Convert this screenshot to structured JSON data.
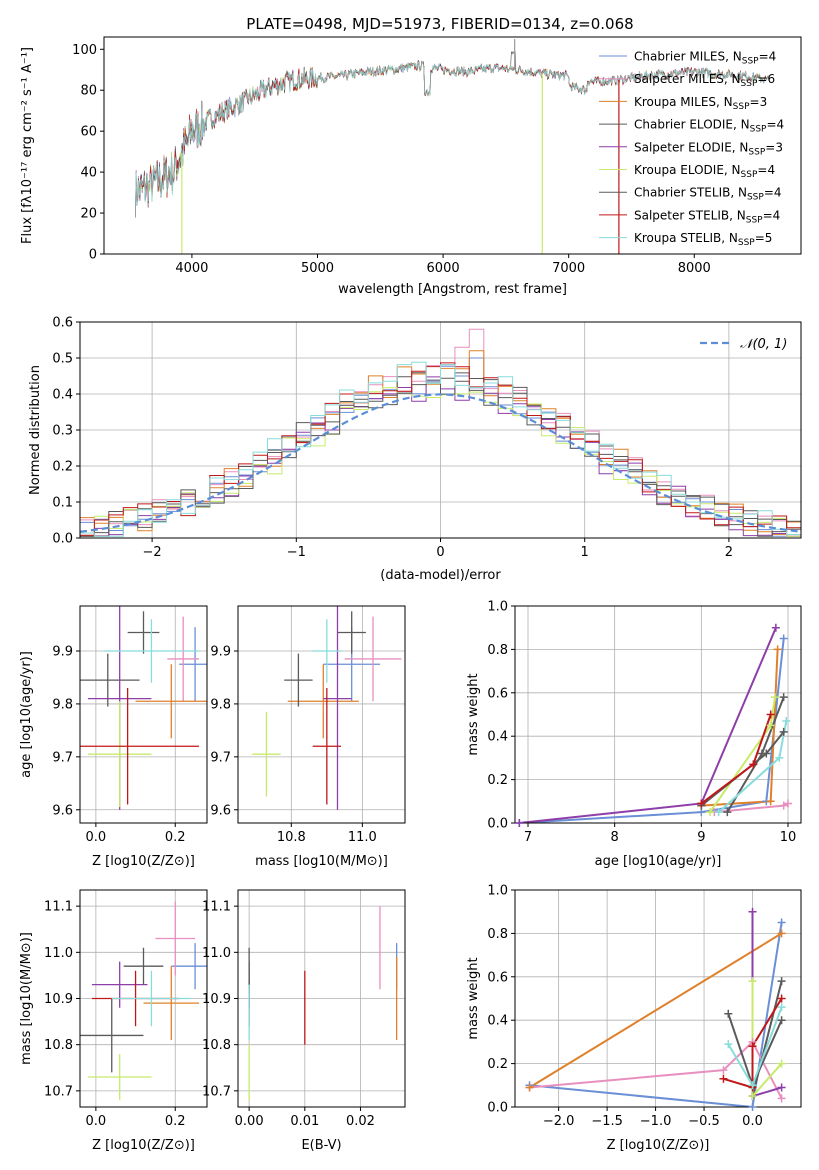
{
  "figure": {
    "title": "PLATE=0498, MJD=51973, FIBERID=0134, z=0.068"
  },
  "palette": {
    "Chabrier MILES": "#6a8fd6",
    "Salpeter MILES": "#e88fbf",
    "Kroupa MILES": "#e0802a",
    "Chabrier ELODIE": "#5a5a5a",
    "Salpeter ELODIE": "#8e3ea8",
    "Kroupa ELODIE": "#c8ea6a",
    "Chabrier STELIB": "#5a5a5a",
    "Salpeter STELIB": "#c01818",
    "Kroupa STELIB": "#88dcdc",
    "normal_curve": "#5b8ed6"
  },
  "chart_data": [
    {
      "id": "spectrum",
      "type": "line",
      "title": "PLATE=0498, MJD=51973, FIBERID=0134, z=0.068",
      "xlabel": "wavelength [Angstrom, rest frame]",
      "ylabel": "Flux [fλ10⁻¹⁷ erg cm⁻² s⁻¹ A⁻¹]",
      "xlim": [
        3300,
        8850
      ],
      "ylim": [
        0,
        106
      ],
      "xticks": [
        4000,
        5000,
        6000,
        7000,
        8000
      ],
      "yticks": [
        0,
        20,
        40,
        60,
        80,
        100
      ],
      "grid": false,
      "legend_position": "top-right",
      "legend": [
        {
          "label": "Chabrier MILES, N",
          "sub": "SSP",
          "tail": "=4"
        },
        {
          "label": "Salpeter MILES, N",
          "sub": "SSP",
          "tail": "=6"
        },
        {
          "label": "Kroupa MILES, N",
          "sub": "SSP",
          "tail": "=3"
        },
        {
          "label": "Chabrier ELODIE, N",
          "sub": "SSP",
          "tail": "=4"
        },
        {
          "label": "Salpeter ELODIE, N",
          "sub": "SSP",
          "tail": "=3"
        },
        {
          "label": "Kroupa ELODIE, N",
          "sub": "SSP",
          "tail": "=4"
        },
        {
          "label": "Chabrier STELIB, N",
          "sub": "SSP",
          "tail": "=4"
        },
        {
          "label": "Salpeter STELIB, N",
          "sub": "SSP",
          "tail": "=4"
        },
        {
          "label": "Kroupa STELIB, N",
          "sub": "SSP",
          "tail": "=5"
        }
      ],
      "continuum": {
        "x": [
          3550,
          3700,
          3850,
          4000,
          4200,
          4400,
          4600,
          4800,
          5000,
          5200,
          5400,
          5600,
          5800,
          6000,
          6200,
          6400,
          6600,
          6800,
          7000,
          7200,
          7400,
          7600,
          7800,
          8000,
          8200,
          8400,
          8600
        ],
        "y": [
          30,
          35,
          40,
          60,
          68,
          74,
          81,
          85,
          86,
          87,
          89,
          90,
          92,
          90,
          89,
          91,
          90,
          88,
          87,
          84,
          85,
          87,
          88,
          89,
          88,
          87,
          85
        ]
      },
      "spikes": [
        {
          "x": 3920,
          "y": 0
        },
        {
          "x": 6790,
          "y": 0
        },
        {
          "x": 7400,
          "y": 0
        },
        {
          "x": 6570,
          "y": 105
        }
      ]
    },
    {
      "id": "residual_hist",
      "type": "histogram",
      "xlabel": "(data-model)/error",
      "ylabel": "Normed distribution",
      "xlim": [
        -2.5,
        2.5
      ],
      "ylim": [
        0,
        0.6
      ],
      "xticks": [
        -2,
        -1,
        0,
        1,
        2
      ],
      "yticks": [
        0.0,
        0.1,
        0.2,
        0.3,
        0.4,
        0.5,
        0.6
      ],
      "grid": true,
      "legend_position": "top-right",
      "legend": [
        "𝒩(0, 1)"
      ],
      "bin_width": 0.1,
      "peak_values": {
        "Salpeter MILES": 0.58,
        "Kroupa MILES": 0.52,
        "Chabrier MILES": 0.5
      }
    },
    {
      "id": "age_vs_Z",
      "type": "scatter",
      "xlabel": "Z [log10(Z/Z⊙)]",
      "ylabel": "age [log10(age/yr)]",
      "xlim": [
        -0.04,
        0.28
      ],
      "ylim": [
        9.575,
        9.985
      ],
      "xticks": [
        0.0,
        0.2
      ],
      "yticks": [
        9.6,
        9.7,
        9.8,
        9.9
      ],
      "grid": true,
      "points": [
        {
          "model": "Chabrier MILES",
          "x": 0.25,
          "xerr": 0.04,
          "y": 9.875,
          "yerr": 0.07
        },
        {
          "model": "Salpeter MILES",
          "x": 0.22,
          "xerr": 0.04,
          "y": 9.885,
          "yerr": 0.08
        },
        {
          "model": "Kroupa MILES",
          "x": 0.19,
          "xerr": 0.09,
          "y": 9.805,
          "yerr": 0.07
        },
        {
          "model": "Chabrier ELODIE",
          "x": 0.03,
          "xerr": 0.08,
          "y": 9.845,
          "yerr": 0.05
        },
        {
          "model": "Salpeter ELODIE",
          "x": 0.06,
          "xerr": 0.08,
          "y": 9.81,
          "yerr": 0.21
        },
        {
          "model": "Kroupa ELODIE",
          "x": 0.06,
          "xerr": 0.08,
          "y": 9.705,
          "yerr": 0.1
        },
        {
          "model": "Chabrier STELIB",
          "x": 0.12,
          "xerr": 0.04,
          "y": 9.935,
          "yerr": 0.04
        },
        {
          "model": "Salpeter STELIB",
          "x": 0.08,
          "xerr": 0.18,
          "y": 9.72,
          "yerr": 0.11
        },
        {
          "model": "Kroupa STELIB",
          "x": 0.14,
          "xerr": 0.12,
          "y": 9.9,
          "yerr": 0.06
        }
      ]
    },
    {
      "id": "age_vs_mass",
      "type": "scatter",
      "xlabel": "mass [log10(M/M⊙)]",
      "ylabel": "",
      "xlim": [
        10.65,
        11.12
      ],
      "ylim": [
        9.575,
        9.985
      ],
      "xticks": [
        10.8,
        11.0
      ],
      "yticks": [
        9.6,
        9.7,
        9.8,
        9.9
      ],
      "grid": true,
      "points": [
        {
          "model": "Chabrier MILES",
          "x": 10.97,
          "xerr": 0.08,
          "y": 9.875,
          "yerr": 0.07
        },
        {
          "model": "Salpeter MILES",
          "x": 11.03,
          "xerr": 0.08,
          "y": 9.885,
          "yerr": 0.08
        },
        {
          "model": "Kroupa MILES",
          "x": 10.89,
          "xerr": 0.1,
          "y": 9.805,
          "yerr": 0.07
        },
        {
          "model": "Chabrier ELODIE",
          "x": 10.82,
          "xerr": 0.04,
          "y": 9.845,
          "yerr": 0.05
        },
        {
          "model": "Salpeter ELODIE",
          "x": 10.93,
          "xerr": 0.04,
          "y": 9.81,
          "yerr": 0.21
        },
        {
          "model": "Kroupa ELODIE",
          "x": 10.73,
          "xerr": 0.04,
          "y": 9.705,
          "yerr": 0.08
        },
        {
          "model": "Chabrier STELIB",
          "x": 10.97,
          "xerr": 0.04,
          "y": 9.935,
          "yerr": 0.04
        },
        {
          "model": "Salpeter STELIB",
          "x": 10.9,
          "xerr": 0.04,
          "y": 9.72,
          "yerr": 0.11
        },
        {
          "model": "Kroupa STELIB",
          "x": 10.9,
          "xerr": 0.04,
          "y": 9.9,
          "yerr": 0.06
        }
      ]
    },
    {
      "id": "weight_vs_age",
      "type": "line",
      "xlabel": "age [log10(age/yr)]",
      "ylabel": "mass weight",
      "xlim": [
        6.85,
        10.15
      ],
      "ylim": [
        0,
        1.0
      ],
      "xticks": [
        7,
        8,
        9,
        10
      ],
      "yticks": [
        0.0,
        0.2,
        0.4,
        0.6,
        0.8,
        1.0
      ],
      "grid": true,
      "series": [
        {
          "model": "Chabrier MILES",
          "points": [
            [
              6.9,
              0.0
            ],
            [
              9.0,
              0.05
            ],
            [
              9.75,
              0.1
            ],
            [
              9.95,
              0.85
            ]
          ]
        },
        {
          "model": "Salpeter MILES",
          "points": [
            [
              9.15,
              0.05
            ],
            [
              9.95,
              0.08
            ],
            [
              10.0,
              0.09
            ]
          ]
        },
        {
          "model": "Kroupa MILES",
          "points": [
            [
              9.0,
              0.08
            ],
            [
              9.8,
              0.1
            ],
            [
              9.88,
              0.8
            ]
          ]
        },
        {
          "model": "Chabrier ELODIE",
          "points": [
            [
              9.3,
              0.05
            ],
            [
              9.7,
              0.32
            ],
            [
              9.95,
              0.58
            ]
          ]
        },
        {
          "model": "Salpeter ELODIE",
          "points": [
            [
              6.9,
              0.0
            ],
            [
              9.0,
              0.09
            ],
            [
              9.86,
              0.9
            ]
          ]
        },
        {
          "model": "Kroupa ELODIE",
          "points": [
            [
              9.1,
              0.05
            ],
            [
              9.8,
              0.45
            ],
            [
              9.85,
              0.58
            ]
          ]
        },
        {
          "model": "Chabrier STELIB",
          "points": [
            [
              9.0,
              0.08
            ],
            [
              9.75,
              0.32
            ],
            [
              9.95,
              0.42
            ]
          ]
        },
        {
          "model": "Salpeter STELIB",
          "points": [
            [
              9.0,
              0.09
            ],
            [
              9.6,
              0.27
            ],
            [
              9.8,
              0.5
            ]
          ]
        },
        {
          "model": "Kroupa STELIB",
          "points": [
            [
              9.2,
              0.05
            ],
            [
              9.9,
              0.3
            ],
            [
              9.98,
              0.47
            ]
          ]
        }
      ]
    },
    {
      "id": "mass_vs_Z",
      "type": "scatter",
      "xlabel": "Z [log10(Z/Z⊙)]",
      "ylabel": "mass [log10(M/M⊙)]",
      "xlim": [
        -0.04,
        0.28
      ],
      "ylim": [
        10.665,
        11.135
      ],
      "xticks": [
        0.0,
        0.2
      ],
      "yticks": [
        10.7,
        10.8,
        10.9,
        11.0,
        11.1
      ],
      "grid": true,
      "points": [
        {
          "model": "Chabrier MILES",
          "x": 0.25,
          "xerr": 0.06,
          "y": 10.97,
          "yerr": 0.05
        },
        {
          "model": "Salpeter MILES",
          "x": 0.2,
          "xerr": 0.05,
          "y": 11.03,
          "yerr": 0.08
        },
        {
          "model": "Kroupa MILES",
          "x": 0.19,
          "xerr": 0.07,
          "y": 10.89,
          "yerr": 0.08
        },
        {
          "model": "Chabrier ELODIE",
          "x": 0.04,
          "xerr": 0.08,
          "y": 10.82,
          "yerr": 0.08
        },
        {
          "model": "Salpeter ELODIE",
          "x": 0.06,
          "xerr": 0.07,
          "y": 10.93,
          "yerr": 0.05
        },
        {
          "model": "Kroupa ELODIE",
          "x": 0.06,
          "xerr": 0.08,
          "y": 10.73,
          "yerr": 0.05
        },
        {
          "model": "Chabrier STELIB",
          "x": 0.12,
          "xerr": 0.05,
          "y": 10.97,
          "yerr": 0.04
        },
        {
          "model": "Salpeter STELIB",
          "x": 0.1,
          "xerr": 0.11,
          "y": 10.9,
          "yerr": 0.06
        },
        {
          "model": "Kroupa STELIB",
          "x": 0.14,
          "xerr": 0.1,
          "y": 10.9,
          "yerr": 0.06
        }
      ]
    },
    {
      "id": "mass_vs_ebv",
      "type": "scatter",
      "xlabel": "E(B-V)",
      "ylabel": "",
      "xlim": [
        -0.002,
        0.028
      ],
      "ylim": [
        10.665,
        11.135
      ],
      "xticks": [
        0.0,
        0.01,
        0.02
      ],
      "yticks": [
        10.7,
        10.8,
        10.9,
        11.0,
        11.1
      ],
      "grid": true,
      "points": [
        {
          "model": "Chabrier MILES",
          "x": 0.0265,
          "xerr": 0,
          "y": 10.97,
          "yerr": 0.05
        },
        {
          "model": "Salpeter MILES",
          "x": 0.0235,
          "xerr": 0,
          "y": 11.01,
          "yerr": 0.09
        },
        {
          "model": "Kroupa MILES",
          "x": 0.0265,
          "xerr": 0,
          "y": 10.9,
          "yerr": 0.09
        },
        {
          "model": "Chabrier ELODIE",
          "x": 0.0,
          "xerr": 0,
          "y": 10.93,
          "yerr": 0.05
        },
        {
          "model": "Salpeter ELODIE",
          "x": 0.0,
          "xerr": 0,
          "y": 10.89,
          "yerr": 0.05
        },
        {
          "model": "Kroupa ELODIE",
          "x": 0.0,
          "xerr": 0,
          "y": 10.74,
          "yerr": 0.06
        },
        {
          "model": "Chabrier STELIB",
          "x": 0.0,
          "xerr": 0,
          "y": 10.96,
          "yerr": 0.05
        },
        {
          "model": "Salpeter STELIB",
          "x": 0.01,
          "xerr": 0,
          "y": 10.88,
          "yerr": 0.08
        },
        {
          "model": "Kroupa STELIB",
          "x": 0.0,
          "xerr": 0,
          "y": 10.87,
          "yerr": 0.06
        }
      ]
    },
    {
      "id": "weight_vs_Z",
      "type": "line",
      "xlabel": "Z [log10(Z/Z⊙)]",
      "ylabel": "mass weight",
      "xlim": [
        -2.45,
        0.5
      ],
      "ylim": [
        0,
        1.0
      ],
      "xticks": [
        -2.0,
        -1.5,
        -1.0,
        -0.5,
        0.0
      ],
      "yticks": [
        0.0,
        0.2,
        0.4,
        0.6,
        0.8,
        1.0
      ],
      "grid": true,
      "series": [
        {
          "model": "Chabrier MILES",
          "points": [
            [
              -2.3,
              0.1
            ],
            [
              0.0,
              0.0
            ],
            [
              0.3,
              0.85
            ]
          ]
        },
        {
          "model": "Salpeter MILES",
          "points": [
            [
              -2.3,
              0.09
            ],
            [
              -0.3,
              0.17
            ],
            [
              0.0,
              0.3
            ],
            [
              0.3,
              0.04
            ]
          ]
        },
        {
          "model": "Kroupa MILES",
          "points": [
            [
              -2.3,
              0.09
            ],
            [
              0.3,
              0.8
            ]
          ]
        },
        {
          "model": "Chabrier ELODIE",
          "points": [
            [
              0.0,
              0.05
            ],
            [
              0.3,
              0.58
            ]
          ]
        },
        {
          "model": "Salpeter ELODIE",
          "points": [
            [
              0.0,
              0.9
            ],
            [
              0.0,
              0.05
            ],
            [
              0.3,
              0.09
            ]
          ]
        },
        {
          "model": "Kroupa ELODIE",
          "points": [
            [
              0.0,
              0.58
            ],
            [
              0.0,
              0.05
            ],
            [
              0.3,
              0.2
            ]
          ]
        },
        {
          "model": "Chabrier STELIB",
          "points": [
            [
              -0.25,
              0.43
            ],
            [
              0.0,
              0.1
            ],
            [
              0.3,
              0.4
            ]
          ]
        },
        {
          "model": "Salpeter STELIB",
          "points": [
            [
              -0.3,
              0.13
            ],
            [
              0.0,
              0.09
            ],
            [
              0.0,
              0.28
            ],
            [
              0.3,
              0.5
            ]
          ]
        },
        {
          "model": "Kroupa STELIB",
          "points": [
            [
              -0.25,
              0.29
            ],
            [
              0.0,
              0.1
            ],
            [
              0.3,
              0.46
            ]
          ]
        }
      ]
    }
  ]
}
